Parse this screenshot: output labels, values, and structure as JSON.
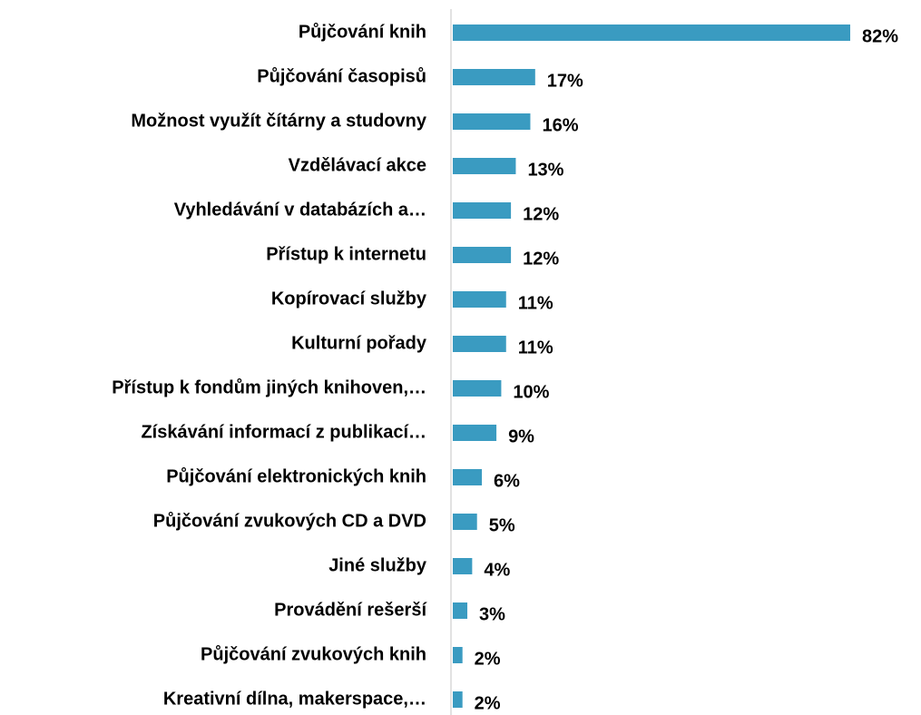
{
  "chart_data": {
    "type": "bar",
    "orientation": "horizontal",
    "color": "#3a9bc1",
    "categories": [
      "Půjčování knih",
      "Půjčování časopisů",
      "Možnost využít čítárny a studovny",
      "Vzdělávací akce",
      "Vyhledávání v databázích a…",
      "Přístup k internetu",
      "Kopírovací služby",
      "Kulturní pořady",
      "Přístup k fondům jiných knihoven,…",
      "Získávání informací z publikací…",
      "Půjčování elektronických knih",
      "Půjčování zvukových CD a DVD",
      "Jiné služby",
      "Provádění rešerší",
      "Půjčování zvukových knih",
      "Kreativní dílna, makerspace,…"
    ],
    "values": [
      82,
      17,
      16,
      13,
      12,
      12,
      11,
      11,
      10,
      9,
      6,
      5,
      4,
      3,
      2,
      2
    ],
    "value_labels": [
      "82%",
      "17%",
      "16%",
      "13%",
      "12%",
      "12%",
      "11%",
      "11%",
      "10%",
      "9%",
      "6%",
      "5%",
      "4%",
      "3%",
      "2%",
      "2%"
    ]
  }
}
